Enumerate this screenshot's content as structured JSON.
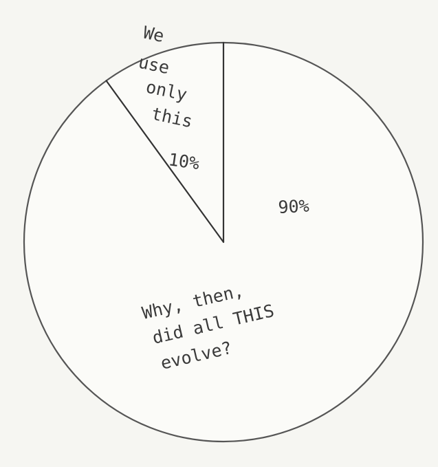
{
  "chart_data": {
    "type": "pie",
    "title": "",
    "slices": [
      {
        "value": 10,
        "percent_label": "10%",
        "text_lines": [
          "We",
          "use",
          "only",
          "this"
        ]
      },
      {
        "value": 90,
        "percent_label": "90%",
        "text_lines": [
          "Why, then,",
          "did all THIS",
          "evolve?"
        ]
      }
    ],
    "colors": {
      "fill": "#fbfbf8",
      "outline": "#555555",
      "text": "#3a3a3a"
    }
  }
}
